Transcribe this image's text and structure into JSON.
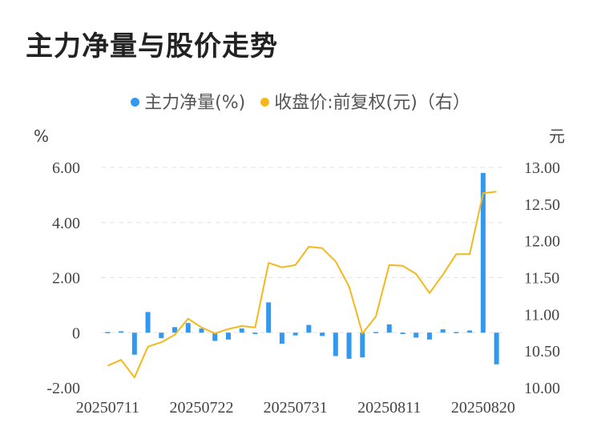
{
  "title": "主力净量与股价走势",
  "legend": [
    {
      "label": "主力净量(%)",
      "color": "#3399ee"
    },
    {
      "label": "收盘价:前复权(元)（右）",
      "color": "#f5b81c"
    }
  ],
  "chart_data": {
    "type": "bar+line",
    "categories": [
      "20250711",
      "20250714",
      "20250715",
      "20250716",
      "20250717",
      "20250718",
      "20250721",
      "20250722",
      "20250723",
      "20250724",
      "20250725",
      "20250728",
      "20250729",
      "20250730",
      "20250731",
      "20250801",
      "20250804",
      "20250805",
      "20250806",
      "20250807",
      "20250808",
      "20250811",
      "20250812",
      "20250813",
      "20250814",
      "20250815",
      "20250818",
      "20250819",
      "20250820",
      "20250821"
    ],
    "x_tick_labels": [
      "20250711",
      "20250722",
      "20250731",
      "20250811",
      "20250820"
    ],
    "left_axis": {
      "unit": "%",
      "ticks": [
        "6.00",
        "4.00",
        "2.00",
        "0",
        "-2.00"
      ],
      "ylim": [
        -2,
        6
      ]
    },
    "right_axis": {
      "unit": "元",
      "ticks": [
        "13.00",
        "12.50",
        "12.00",
        "11.50",
        "11.00",
        "10.50",
        "10.00"
      ],
      "ylim": [
        10,
        13
      ]
    },
    "grid": true,
    "series": [
      {
        "name": "主力净量(%)",
        "type": "bar",
        "axis": "left",
        "color": "#3399ee",
        "values": [
          -0.03,
          0.05,
          -0.8,
          0.75,
          -0.2,
          0.2,
          0.35,
          0.15,
          -0.3,
          -0.25,
          0.15,
          -0.05,
          1.1,
          -0.4,
          -0.1,
          0.28,
          -0.12,
          -0.85,
          -0.95,
          -0.9,
          0.02,
          0.3,
          -0.05,
          -0.18,
          -0.25,
          0.12,
          0.03,
          0.08,
          5.8,
          -1.15
        ]
      },
      {
        "name": "收盘价:前复权(元)（右）",
        "type": "line",
        "axis": "right",
        "color": "#f5b81c",
        "values": [
          10.3,
          10.38,
          10.14,
          10.56,
          10.62,
          10.72,
          10.94,
          10.82,
          10.74,
          10.8,
          10.84,
          10.82,
          11.7,
          11.64,
          11.67,
          11.92,
          11.9,
          11.72,
          11.38,
          10.74,
          10.97,
          11.67,
          11.66,
          11.55,
          11.29,
          11.54,
          11.82,
          11.82,
          12.65,
          12.67
        ]
      }
    ]
  }
}
